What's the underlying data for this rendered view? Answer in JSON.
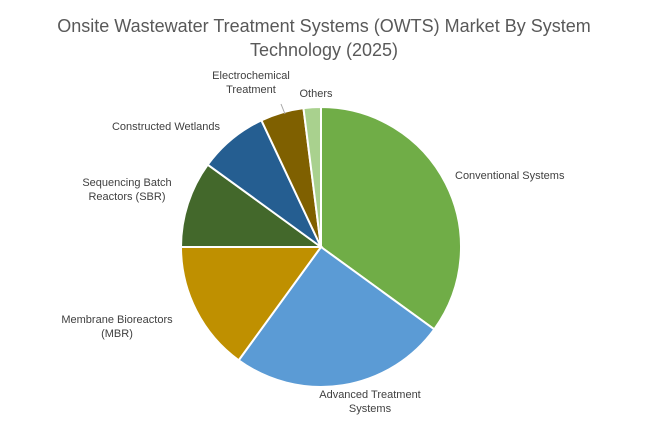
{
  "chart_data": {
    "type": "pie",
    "title_lines": [
      "Onsite Wastewater Treatment Systems (OWTS) Market By System",
      "Technology (2025)"
    ],
    "categories": [
      "Conventional Systems",
      "Advanced Treatment Systems",
      "Membrane Bioreactors (MBR)",
      "Sequencing Batch Reactors (SBR)",
      "Constructed Wetlands",
      "Electrochemical Treatment",
      "Others"
    ],
    "label_lines": [
      [
        "Conventional Systems"
      ],
      [
        "Advanced Treatment",
        "Systems"
      ],
      [
        "Membrane Bioreactors",
        "(MBR)"
      ],
      [
        "Sequencing Batch",
        "Reactors (SBR)"
      ],
      [
        "Constructed Wetlands"
      ],
      [
        "Electrochemical",
        "Treatment"
      ],
      [
        "Others"
      ]
    ],
    "values": [
      35,
      25,
      15,
      10,
      8,
      5,
      2
    ],
    "colors": [
      "#70ad47",
      "#5b9bd5",
      "#bf9000",
      "#43682b",
      "#255e91",
      "#7f6000",
      "#a9d18e"
    ],
    "start_angle_deg": 0,
    "direction": "clockwise",
    "legend": "none"
  }
}
